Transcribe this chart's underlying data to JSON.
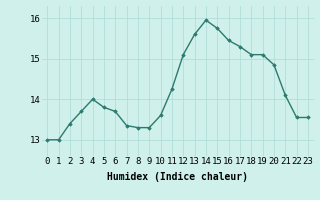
{
  "x": [
    0,
    1,
    2,
    3,
    4,
    5,
    6,
    7,
    8,
    9,
    10,
    11,
    12,
    13,
    14,
    15,
    16,
    17,
    18,
    19,
    20,
    21,
    22,
    23
  ],
  "y": [
    13.0,
    13.0,
    13.4,
    13.7,
    14.0,
    13.8,
    13.7,
    13.35,
    13.3,
    13.3,
    13.6,
    14.25,
    15.1,
    15.6,
    15.95,
    15.75,
    15.45,
    15.3,
    15.1,
    15.1,
    14.85,
    14.1,
    13.55,
    13.55
  ],
  "line_color": "#2d7a6e",
  "marker": "D",
  "marker_size": 1.8,
  "linewidth": 1.0,
  "bg_color": "#cff0eb",
  "grid_color": "#b0ddd8",
  "xlabel": "Humidex (Indice chaleur)",
  "xlabel_fontsize": 7,
  "tick_fontsize": 6.5,
  "ylim": [
    12.6,
    16.3
  ],
  "yticks": [
    13,
    14,
    15,
    16
  ],
  "xlim": [
    -0.5,
    23.5
  ],
  "xtick_labels": [
    "0",
    "1",
    "2",
    "3",
    "4",
    "5",
    "6",
    "7",
    "8",
    "9",
    "10",
    "11",
    "12",
    "13",
    "14",
    "15",
    "16",
    "17",
    "18",
    "19",
    "20",
    "21",
    "22",
    "23"
  ]
}
